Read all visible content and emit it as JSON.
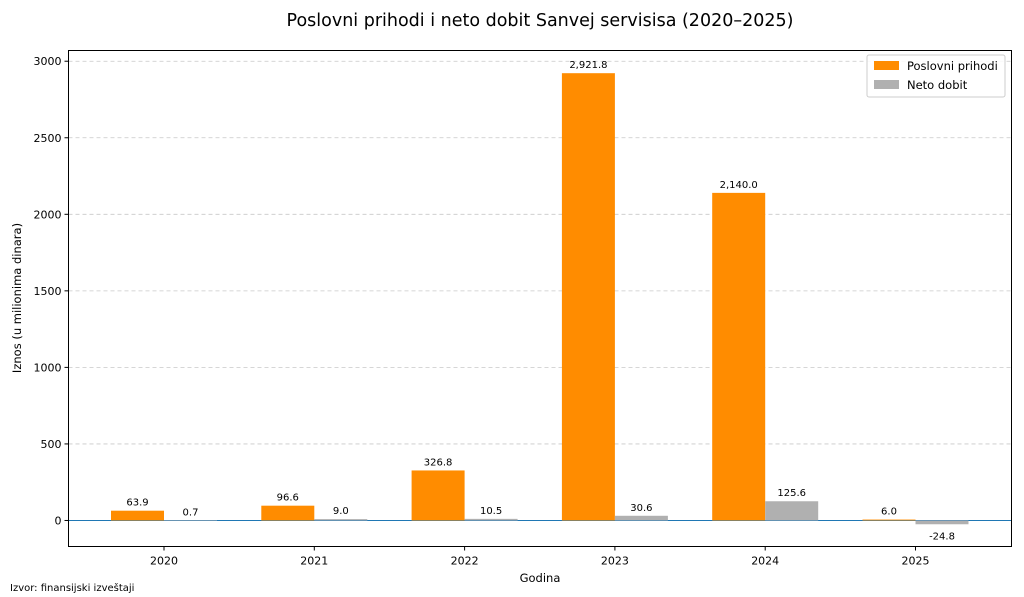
{
  "chart_data": {
    "type": "bar",
    "title": "Poslovni prihodi i neto dobit Sanvej servisisa (2020–2025)",
    "xlabel": "Godina",
    "ylabel": "Iznos (u milionima dinara)",
    "categories": [
      "2020",
      "2021",
      "2022",
      "2023",
      "2024",
      "2025"
    ],
    "series": [
      {
        "name": "Poslovni prihodi",
        "color": "#ff8c00",
        "values": [
          63.9,
          96.6,
          326.8,
          2921.8,
          2140.0,
          6.0
        ],
        "labels": [
          "63.9",
          "96.6",
          "326.8",
          "2,921.8",
          "2,140.0",
          "6.0"
        ]
      },
      {
        "name": "Neto dobit",
        "color": "#b0b0b0",
        "values": [
          0.7,
          9.0,
          10.5,
          30.6,
          125.6,
          -24.8
        ],
        "labels": [
          "0.7",
          "9.0",
          "10.5",
          "30.6",
          "125.6",
          "-24.8"
        ]
      }
    ],
    "ylim": [
      -170,
      3070
    ],
    "yticks": [
      0,
      500,
      1000,
      1500,
      2000,
      2500,
      3000
    ],
    "grid": true,
    "zero_line_color": "#1f77b4",
    "legend_position": "top-right"
  },
  "footer": {
    "source": "Izvor: finansijski izveštaji"
  }
}
